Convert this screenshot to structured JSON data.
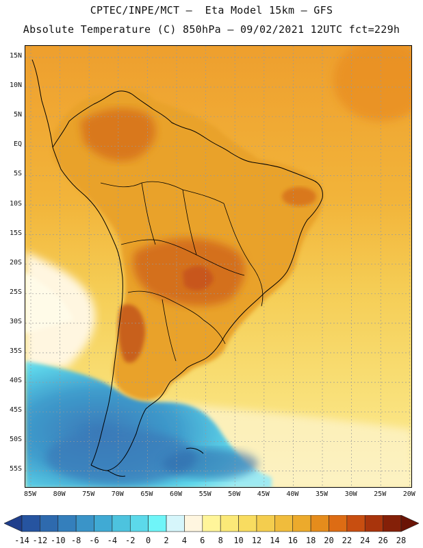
{
  "header": {
    "title_line1": "CPTEC/INPE/MCT –  Eta Model 15km – GFS",
    "title_line2": "Absolute Temperature (C) 850hPa – 09/02/2021 12UTC fct=229h"
  },
  "map": {
    "lat_labels": [
      "15N",
      "10N",
      "5N",
      "EQ",
      "5S",
      "10S",
      "15S",
      "20S",
      "25S",
      "30S",
      "35S",
      "40S",
      "45S",
      "50S",
      "55S"
    ],
    "lon_labels": [
      "85W",
      "80W",
      "75W",
      "70W",
      "65W",
      "60W",
      "55W",
      "50W",
      "45W",
      "40W",
      "35W",
      "30W",
      "25W",
      "20W"
    ],
    "colors": {
      "ocean_north": "#f1b43c",
      "ocean_mid": "#f6d45e",
      "ocean_south": "#fbe78a",
      "land_warm": "#e9a22a",
      "land_hot": "#d9781e",
      "land_hottest": "#c8571a",
      "cold_shelf": "#5ed6ea",
      "cold_deep": "#3f9ccc",
      "cold_core": "#3a79b8",
      "pale": "#fff6e0",
      "coast": "#000000",
      "grid": "#999999"
    }
  },
  "legend": {
    "labels": [
      "-14",
      "-12",
      "-10",
      "-8",
      "-6",
      "-4",
      "-2",
      "0",
      "2",
      "4",
      "6",
      "8",
      "10",
      "12",
      "14",
      "16",
      "18",
      "20",
      "22",
      "24",
      "26",
      "28"
    ],
    "colors": [
      "#1f3e8c",
      "#2654a0",
      "#2e6aae",
      "#347fbc",
      "#3a94c8",
      "#40aad4",
      "#4dc3de",
      "#5cd9ea",
      "#6ff5f8",
      "#d6f6fb",
      "#fff6e0",
      "#fff59a",
      "#fbe978",
      "#f8dc60",
      "#f4cd4e",
      "#f0bc3c",
      "#ecaa2c",
      "#e58c1c",
      "#dd6c14",
      "#c84e10",
      "#a8340c",
      "#842008",
      "#6a1406"
    ]
  }
}
